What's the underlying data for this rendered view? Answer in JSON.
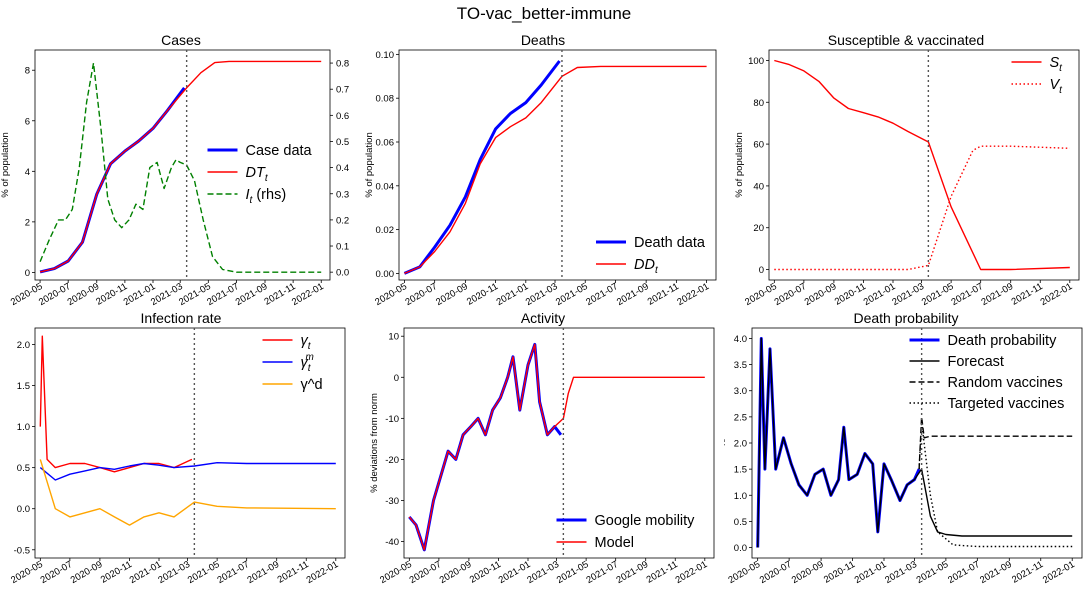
{
  "figure": {
    "title": "TO-vac_better-immune"
  },
  "date_ticks": [
    "2020-05",
    "2020-07",
    "2020-09",
    "2020-11",
    "2021-01",
    "2021-03",
    "2021-05",
    "2021-07",
    "2021-09",
    "2021-11",
    "2022-01"
  ],
  "forecast_start": "2021-03-15",
  "chart_data": [
    {
      "id": "cases",
      "type": "line",
      "title": "Cases",
      "ylabel": "% of population",
      "ylim": [
        -0.3,
        8.8
      ],
      "yticks": [
        0,
        2,
        4,
        6,
        8
      ],
      "y2lim": [
        -0.03,
        0.85
      ],
      "y2ticks": [
        0.0,
        0.1,
        0.2,
        0.3,
        0.4,
        0.5,
        0.6,
        0.7,
        0.8
      ],
      "legend": {
        "position": "center-right",
        "entries": [
          {
            "label": "Case data",
            "color": "#0000ff",
            "style": "solid-thick"
          },
          {
            "label": "DT_t",
            "color": "#ff0000",
            "style": "solid"
          },
          {
            "label": "I_t (rhs)",
            "color": "#008000",
            "style": "dashed"
          }
        ]
      },
      "series": [
        {
          "name": "Case data",
          "color": "#0000ff",
          "style": "solid-thick",
          "x": [
            "2020-05-01",
            "2020-06-01",
            "2020-07-01",
            "2020-08-01",
            "2020-09-01",
            "2020-10-01",
            "2020-11-01",
            "2020-12-01",
            "2021-01-01",
            "2021-02-01",
            "2021-03-10"
          ],
          "y": [
            0.02,
            0.15,
            0.45,
            1.2,
            3.1,
            4.3,
            4.8,
            5.2,
            5.7,
            6.4,
            7.3
          ]
        },
        {
          "name": "DT_t",
          "color": "#ff0000",
          "style": "solid",
          "x": [
            "2020-05-01",
            "2020-06-01",
            "2020-07-01",
            "2020-08-01",
            "2020-09-01",
            "2020-10-01",
            "2020-11-01",
            "2020-12-01",
            "2021-01-01",
            "2021-02-01",
            "2021-03-15",
            "2021-04-15",
            "2021-05-15",
            "2021-06-15",
            "2021-07-15",
            "2022-01-01"
          ],
          "y": [
            0.02,
            0.15,
            0.45,
            1.2,
            3.1,
            4.3,
            4.8,
            5.2,
            5.7,
            6.4,
            7.3,
            7.9,
            8.3,
            8.35,
            8.35,
            8.35
          ]
        },
        {
          "name": "I_t (rhs)",
          "color": "#008000",
          "style": "dashed",
          "axis": "right",
          "x": [
            "2020-05-01",
            "2020-05-20",
            "2020-06-10",
            "2020-06-25",
            "2020-07-10",
            "2020-07-25",
            "2020-08-10",
            "2020-08-25",
            "2020-09-10",
            "2020-09-25",
            "2020-10-10",
            "2020-10-25",
            "2020-11-10",
            "2020-11-25",
            "2020-12-10",
            "2020-12-25",
            "2021-01-10",
            "2021-01-25",
            "2021-02-10",
            "2021-02-20",
            "2021-03-01",
            "2021-03-15",
            "2021-04-01",
            "2021-04-20",
            "2021-05-10",
            "2021-06-01",
            "2021-07-01",
            "2022-01-01"
          ],
          "y": [
            0.04,
            0.12,
            0.2,
            0.2,
            0.24,
            0.4,
            0.65,
            0.8,
            0.55,
            0.28,
            0.2,
            0.17,
            0.2,
            0.26,
            0.24,
            0.4,
            0.42,
            0.32,
            0.4,
            0.43,
            0.42,
            0.41,
            0.35,
            0.2,
            0.06,
            0.01,
            0.0,
            0.0
          ]
        }
      ]
    },
    {
      "id": "deaths",
      "type": "line",
      "title": "Deaths",
      "ylabel": "% of population",
      "ylim": [
        -0.003,
        0.102
      ],
      "yticks": [
        0.0,
        0.02,
        0.04,
        0.06,
        0.08,
        0.1
      ],
      "legend": {
        "position": "bottom-right",
        "entries": [
          {
            "label": "Death data",
            "color": "#0000ff",
            "style": "solid-thick"
          },
          {
            "label": "DD_t",
            "color": "#ff0000",
            "style": "solid"
          }
        ]
      },
      "series": [
        {
          "name": "Death data",
          "color": "#0000ff",
          "style": "solid-thick",
          "x": [
            "2020-05-01",
            "2020-06-01",
            "2020-07-01",
            "2020-08-01",
            "2020-09-01",
            "2020-10-01",
            "2020-11-01",
            "2020-12-01",
            "2021-01-01",
            "2021-02-01",
            "2021-03-10"
          ],
          "y": [
            0.0,
            0.003,
            0.012,
            0.022,
            0.035,
            0.052,
            0.066,
            0.073,
            0.078,
            0.086,
            0.097
          ]
        },
        {
          "name": "DD_t",
          "color": "#ff0000",
          "style": "solid",
          "x": [
            "2020-05-01",
            "2020-06-01",
            "2020-07-01",
            "2020-08-01",
            "2020-09-01",
            "2020-10-01",
            "2020-11-01",
            "2020-12-01",
            "2021-01-01",
            "2021-02-01",
            "2021-03-15",
            "2021-04-15",
            "2021-06-01",
            "2022-01-01"
          ],
          "y": [
            0.0,
            0.003,
            0.01,
            0.019,
            0.032,
            0.05,
            0.062,
            0.067,
            0.071,
            0.078,
            0.09,
            0.094,
            0.0945,
            0.0945
          ]
        }
      ]
    },
    {
      "id": "susceptible",
      "type": "line",
      "title": "Susceptible & vaccinated",
      "ylabel": "% of population",
      "ylim": [
        -5,
        105
      ],
      "yticks": [
        0,
        20,
        40,
        60,
        80,
        100
      ],
      "legend": {
        "position": "top-right",
        "entries": [
          {
            "label": "S_t",
            "color": "#ff0000",
            "style": "solid"
          },
          {
            "label": "V_t",
            "color": "#ff0000",
            "style": "dotted"
          }
        ]
      },
      "series": [
        {
          "name": "S_t",
          "color": "#ff0000",
          "style": "solid",
          "x": [
            "2020-05-01",
            "2020-06-01",
            "2020-07-01",
            "2020-08-01",
            "2020-09-01",
            "2020-10-01",
            "2020-11-01",
            "2020-12-01",
            "2021-01-01",
            "2021-02-01",
            "2021-03-15",
            "2021-05-01",
            "2021-07-01",
            "2021-09-01",
            "2022-01-01"
          ],
          "y": [
            100,
            98,
            95,
            90,
            82,
            77,
            75,
            73,
            70,
            66,
            61,
            30,
            0,
            0,
            1
          ]
        },
        {
          "name": "V_t",
          "color": "#ff0000",
          "style": "dotted",
          "x": [
            "2020-05-01",
            "2021-02-01",
            "2021-03-15",
            "2021-05-01",
            "2021-06-15",
            "2021-07-01",
            "2021-09-01",
            "2022-01-01"
          ],
          "y": [
            0,
            0,
            2,
            35,
            57,
            59,
            59,
            58
          ]
        }
      ]
    },
    {
      "id": "infection",
      "type": "line",
      "title": "Infection rate",
      "ylabel": "",
      "ylim": [
        -0.6,
        2.2
      ],
      "yticks": [
        -0.5,
        0.0,
        0.5,
        1.0,
        1.5,
        2.0
      ],
      "legend": {
        "position": "top-right",
        "entries": [
          {
            "label": "γ_t",
            "color": "#ff0000",
            "style": "solid"
          },
          {
            "label": "γ_t^m",
            "color": "#0000ff",
            "style": "solid"
          },
          {
            "label": "γ^d",
            "color": "#ffa500",
            "style": "solid"
          }
        ]
      },
      "series": [
        {
          "name": "γ_t",
          "color": "#ff0000",
          "style": "solid",
          "x": [
            "2020-05-01",
            "2020-05-05",
            "2020-05-15",
            "2020-06-01",
            "2020-07-01",
            "2020-08-01",
            "2020-09-01",
            "2020-10-01",
            "2020-11-01",
            "2020-12-01",
            "2021-01-01",
            "2021-02-01",
            "2021-03-10"
          ],
          "y": [
            1.0,
            2.1,
            0.6,
            0.5,
            0.55,
            0.55,
            0.5,
            0.45,
            0.5,
            0.55,
            0.55,
            0.5,
            0.6
          ]
        },
        {
          "name": "γ_t^m",
          "color": "#0000ff",
          "style": "solid",
          "x": [
            "2020-05-01",
            "2020-06-01",
            "2020-07-01",
            "2020-08-01",
            "2020-09-01",
            "2020-10-01",
            "2020-11-01",
            "2020-12-01",
            "2021-01-01",
            "2021-02-01",
            "2021-03-15",
            "2021-05-01",
            "2021-07-01",
            "2022-01-01"
          ],
          "y": [
            0.5,
            0.35,
            0.42,
            0.46,
            0.5,
            0.48,
            0.52,
            0.55,
            0.53,
            0.5,
            0.52,
            0.56,
            0.55,
            0.55
          ]
        },
        {
          "name": "γ^d",
          "color": "#ffa500",
          "style": "solid",
          "x": [
            "2020-05-01",
            "2020-06-01",
            "2020-07-01",
            "2020-08-01",
            "2020-09-01",
            "2020-10-01",
            "2020-11-01",
            "2020-12-01",
            "2021-01-01",
            "2021-02-01",
            "2021-03-15",
            "2021-05-01",
            "2021-07-01",
            "2022-01-01"
          ],
          "y": [
            0.6,
            0.0,
            -0.1,
            -0.05,
            0.0,
            -0.1,
            -0.2,
            -0.1,
            -0.05,
            -0.1,
            0.08,
            0.03,
            0.01,
            0.0
          ]
        }
      ]
    },
    {
      "id": "activity",
      "type": "line",
      "title": "Activity",
      "ylabel": "% deviations from norm",
      "ylim": [
        -44,
        12
      ],
      "yticks": [
        -40,
        -30,
        -20,
        -10,
        0,
        10
      ],
      "legend": {
        "position": "bottom-right",
        "entries": [
          {
            "label": "Google mobility",
            "color": "#0000ff",
            "style": "solid-thick"
          },
          {
            "label": "Model",
            "color": "#ff0000",
            "style": "solid"
          }
        ]
      },
      "series": [
        {
          "name": "Google mobility",
          "color": "#0000ff",
          "style": "solid-thick",
          "x": [
            "2020-05-01",
            "2020-05-15",
            "2020-06-01",
            "2020-06-20",
            "2020-07-05",
            "2020-07-20",
            "2020-08-05",
            "2020-08-20",
            "2020-09-05",
            "2020-09-20",
            "2020-10-05",
            "2020-10-20",
            "2020-11-05",
            "2020-11-20",
            "2020-12-01",
            "2020-12-15",
            "2021-01-01",
            "2021-01-15",
            "2021-01-25",
            "2021-02-10",
            "2021-02-25",
            "2021-03-10"
          ],
          "y": [
            -34,
            -36,
            -42,
            -30,
            -24,
            -18,
            -20,
            -14,
            -12,
            -10,
            -14,
            -8,
            -5,
            0,
            5,
            -8,
            3,
            8,
            -6,
            -14,
            -12,
            -14
          ]
        },
        {
          "name": "Model",
          "color": "#ff0000",
          "style": "solid",
          "x": [
            "2020-05-01",
            "2020-05-15",
            "2020-06-01",
            "2020-06-20",
            "2020-07-05",
            "2020-07-20",
            "2020-08-05",
            "2020-08-20",
            "2020-09-05",
            "2020-09-20",
            "2020-10-05",
            "2020-10-20",
            "2020-11-05",
            "2020-11-20",
            "2020-12-01",
            "2020-12-15",
            "2021-01-01",
            "2021-01-15",
            "2021-01-25",
            "2021-02-10",
            "2021-02-25",
            "2021-03-15",
            "2021-03-25",
            "2021-04-05",
            "2022-01-01"
          ],
          "y": [
            -34,
            -36,
            -42,
            -30,
            -24,
            -18,
            -20,
            -14,
            -12,
            -10,
            -14,
            -8,
            -5,
            0,
            5,
            -8,
            3,
            8,
            -6,
            -14,
            -12,
            -10,
            -4,
            0,
            0
          ]
        }
      ]
    },
    {
      "id": "deathprob",
      "type": "line",
      "title": "Death probability",
      "ylabel": "%",
      "ylim": [
        -0.2,
        4.2
      ],
      "yticks": [
        0.0,
        0.5,
        1.0,
        1.5,
        2.0,
        2.5,
        3.0,
        3.5,
        4.0
      ],
      "legend": {
        "position": "top-right",
        "entries": [
          {
            "label": "Death probability",
            "color": "#0000ff",
            "style": "solid-thick"
          },
          {
            "label": "Forecast",
            "color": "#000000",
            "style": "solid"
          },
          {
            "label": "Random vaccines",
            "color": "#000000",
            "style": "dashed"
          },
          {
            "label": "Targeted vaccines",
            "color": "#000000",
            "style": "dotted"
          }
        ]
      },
      "series": [
        {
          "name": "Death probability",
          "color": "#0000ff",
          "style": "solid-thick",
          "x": [
            "2020-05-01",
            "2020-05-08",
            "2020-05-15",
            "2020-05-25",
            "2020-06-05",
            "2020-06-20",
            "2020-07-05",
            "2020-07-20",
            "2020-08-05",
            "2020-08-20",
            "2020-09-05",
            "2020-09-20",
            "2020-10-05",
            "2020-10-15",
            "2020-10-25",
            "2020-11-10",
            "2020-11-25",
            "2020-12-10",
            "2020-12-20",
            "2021-01-01",
            "2021-01-15",
            "2021-02-01",
            "2021-02-15",
            "2021-03-01",
            "2021-03-10"
          ],
          "y": [
            0.0,
            4.0,
            1.5,
            3.8,
            1.5,
            2.1,
            1.6,
            1.2,
            1.0,
            1.4,
            1.5,
            1.0,
            1.3,
            2.3,
            1.3,
            1.4,
            1.8,
            1.6,
            0.3,
            1.6,
            1.3,
            0.9,
            1.2,
            1.3,
            1.5
          ]
        },
        {
          "name": "Forecast",
          "color": "#000000",
          "style": "solid",
          "x": [
            "2020-05-01",
            "2020-05-08",
            "2020-05-15",
            "2020-05-25",
            "2020-06-05",
            "2020-06-20",
            "2020-07-05",
            "2020-07-20",
            "2020-08-05",
            "2020-08-20",
            "2020-09-05",
            "2020-09-20",
            "2020-10-05",
            "2020-10-15",
            "2020-10-25",
            "2020-11-10",
            "2020-11-25",
            "2020-12-10",
            "2020-12-20",
            "2021-01-01",
            "2021-01-15",
            "2021-02-01",
            "2021-02-15",
            "2021-03-01",
            "2021-03-15",
            "2021-04-01",
            "2021-04-15",
            "2021-05-01",
            "2021-06-01",
            "2022-01-01"
          ],
          "y": [
            0.0,
            4.0,
            1.5,
            3.8,
            1.5,
            2.1,
            1.6,
            1.2,
            1.0,
            1.4,
            1.5,
            1.0,
            1.3,
            2.3,
            1.3,
            1.4,
            1.8,
            1.6,
            0.3,
            1.6,
            1.3,
            0.9,
            1.2,
            1.3,
            1.5,
            0.6,
            0.3,
            0.25,
            0.22,
            0.22
          ]
        },
        {
          "name": "Random vaccines",
          "color": "#000000",
          "style": "dashed",
          "x": [
            "2021-03-10",
            "2021-03-15",
            "2021-03-20",
            "2021-04-01",
            "2022-01-01"
          ],
          "y": [
            1.5,
            2.5,
            2.1,
            2.13,
            2.13
          ]
        },
        {
          "name": "Targeted vaccines",
          "color": "#000000",
          "style": "dotted",
          "x": [
            "2021-03-10",
            "2021-03-15",
            "2021-04-01",
            "2021-04-15",
            "2021-05-15",
            "2021-07-01",
            "2022-01-01"
          ],
          "y": [
            1.5,
            2.4,
            1.0,
            0.3,
            0.05,
            0.02,
            0.02
          ]
        }
      ]
    }
  ]
}
